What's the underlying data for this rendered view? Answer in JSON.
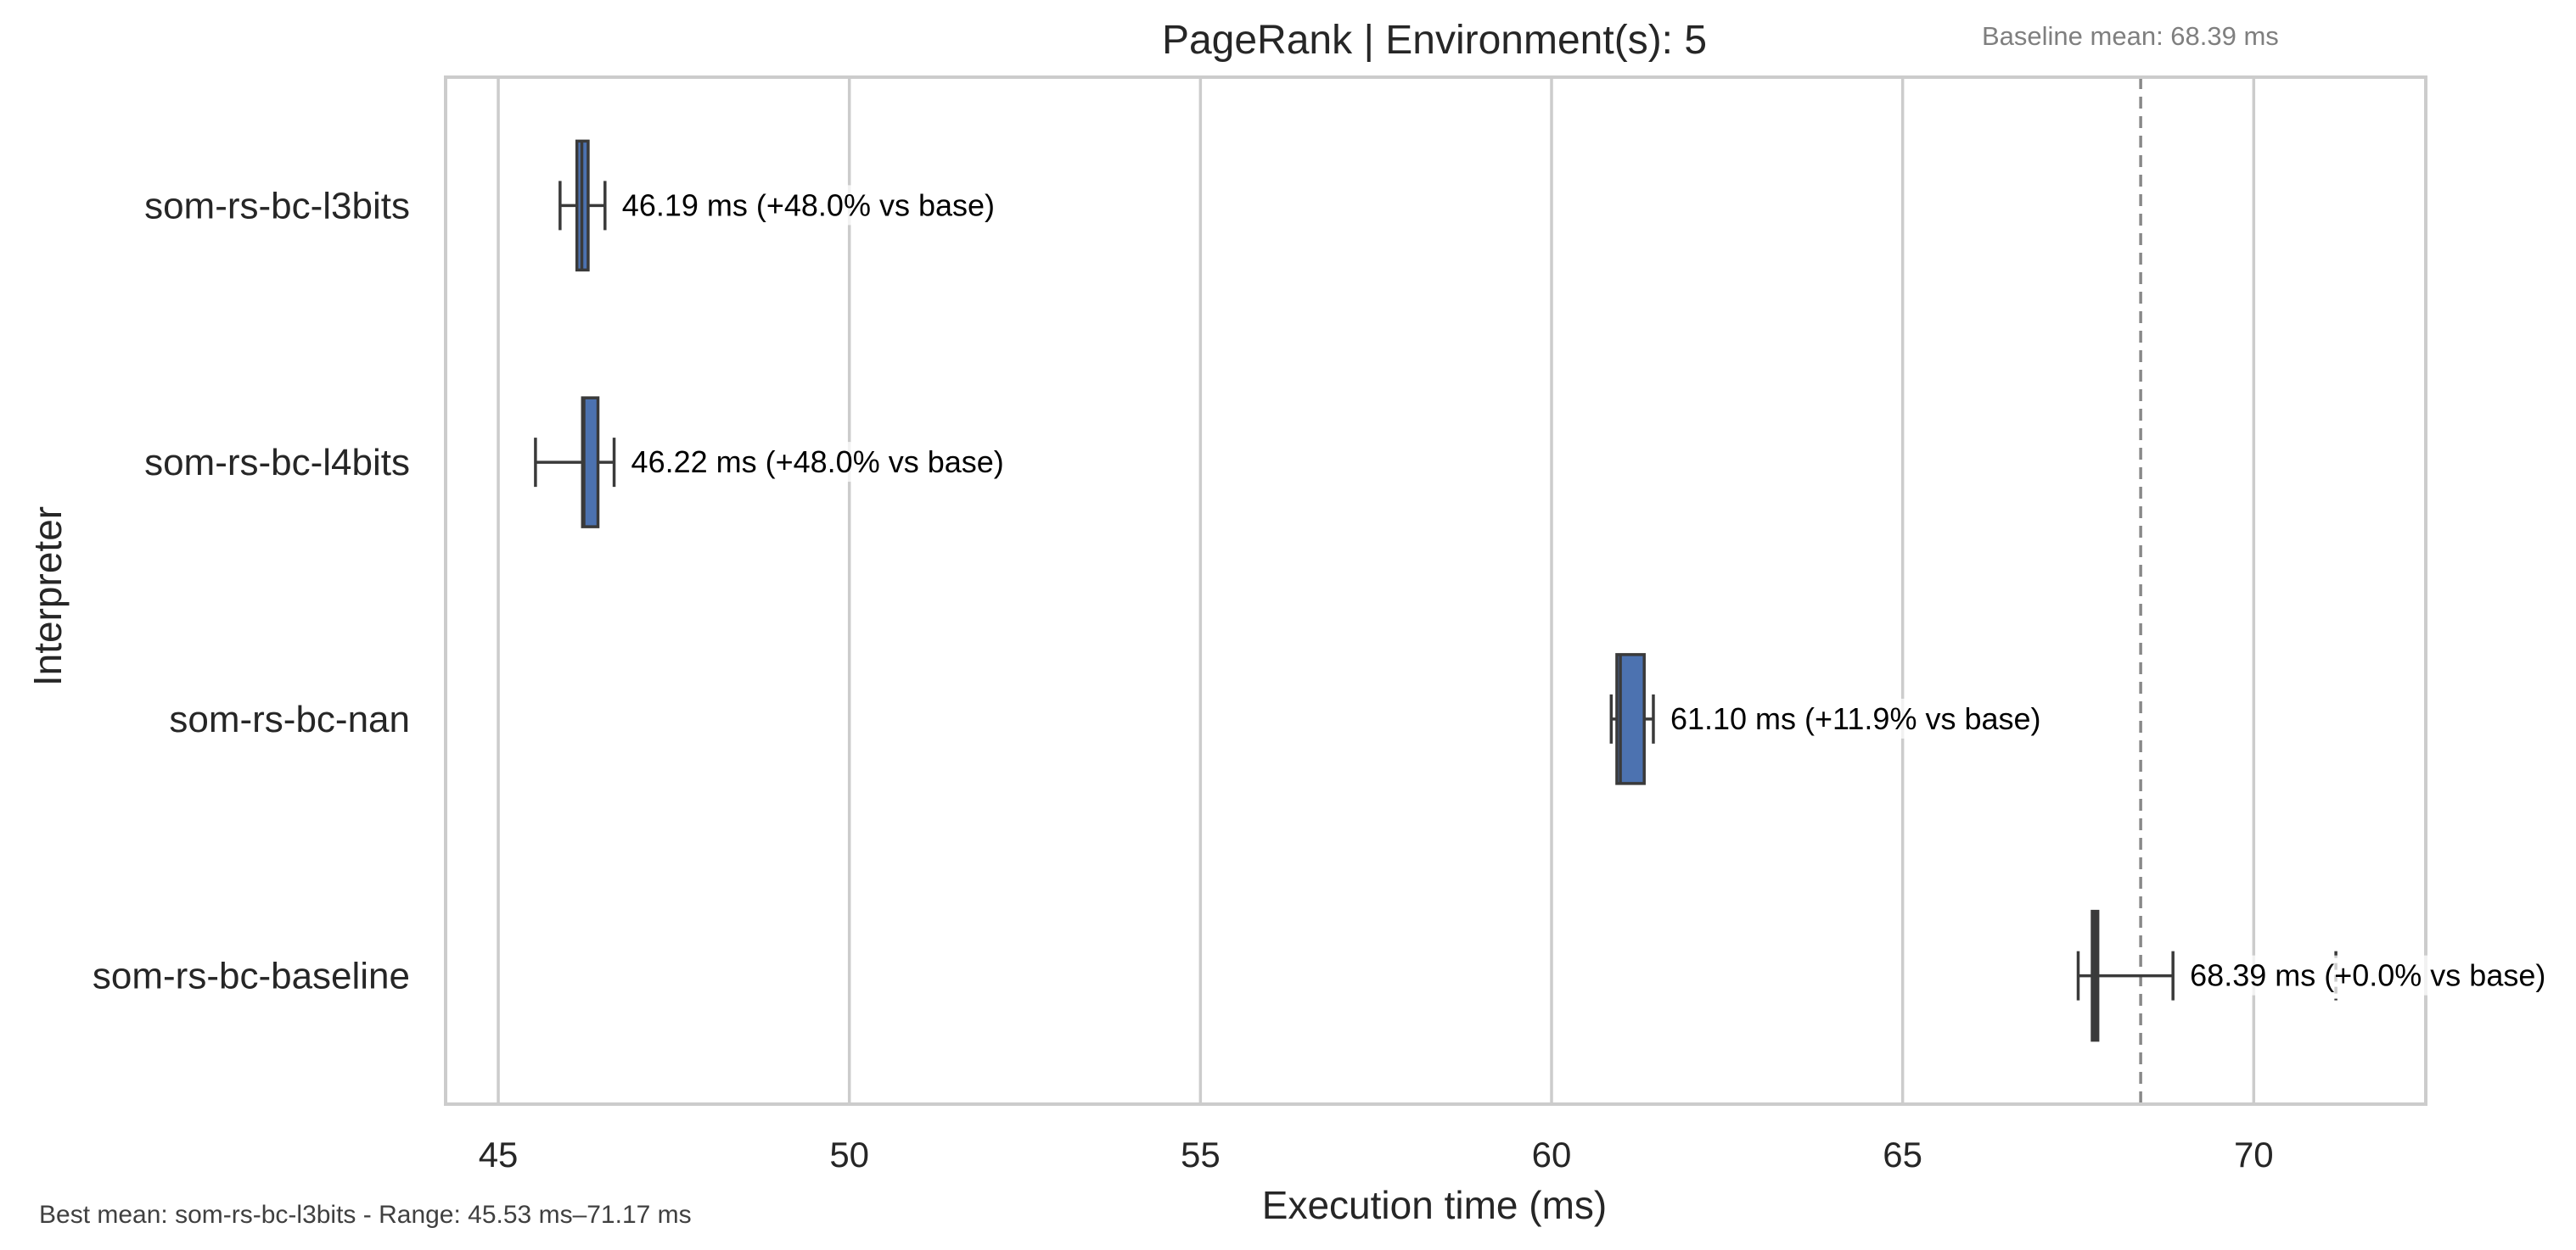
{
  "chart_data": {
    "type": "box",
    "orientation": "horizontal",
    "title": "PageRank | Environment(s): 5",
    "xlabel": "Execution time (ms)",
    "ylabel": "Interpreter",
    "xlim": [
      44.25,
      72.45
    ],
    "xticks": [
      45,
      50,
      55,
      60,
      65,
      70
    ],
    "grid": "vertical",
    "categories": [
      "som-rs-bc-l3bits",
      "som-rs-bc-l4bits",
      "som-rs-bc-nan",
      "som-rs-bc-baseline"
    ],
    "boxes": [
      {
        "category": "som-rs-bc-l3bits",
        "whisker_low": 45.88,
        "q1": 46.12,
        "median": 46.19,
        "q3": 46.28,
        "whisker_high": 46.52,
        "outliers": [],
        "label": "46.19 ms  (+48.0% vs base)"
      },
      {
        "category": "som-rs-bc-l4bits",
        "whisker_low": 45.53,
        "q1": 46.2,
        "median": 46.22,
        "q3": 46.42,
        "whisker_high": 46.65,
        "outliers": [],
        "label": "46.22 ms  (+48.0% vs base)"
      },
      {
        "category": "som-rs-bc-nan",
        "whisker_low": 60.85,
        "q1": 60.93,
        "median": 60.98,
        "q3": 61.32,
        "whisker_high": 61.45,
        "outliers": [],
        "label": "61.10 ms  (+11.9% vs base)"
      },
      {
        "category": "som-rs-bc-baseline",
        "whisker_low": 67.5,
        "q1": 67.7,
        "median": 67.74,
        "q3": 67.78,
        "whisker_high": 68.85,
        "outliers": [
          71.17
        ],
        "label": "68.39 ms  (+0.0% vs base)"
      }
    ],
    "baseline": {
      "value": 68.39,
      "label": "Baseline mean: 68.39 ms"
    },
    "footnote": "Best mean: som-rs-bc-l3bits - Range: 45.53 ms–71.17 ms",
    "colors": {
      "box": "#4c72b0",
      "line": "#3a3a3a",
      "grid": "#cccccc",
      "baseline": "#888888",
      "axis": "#cccccc"
    }
  }
}
